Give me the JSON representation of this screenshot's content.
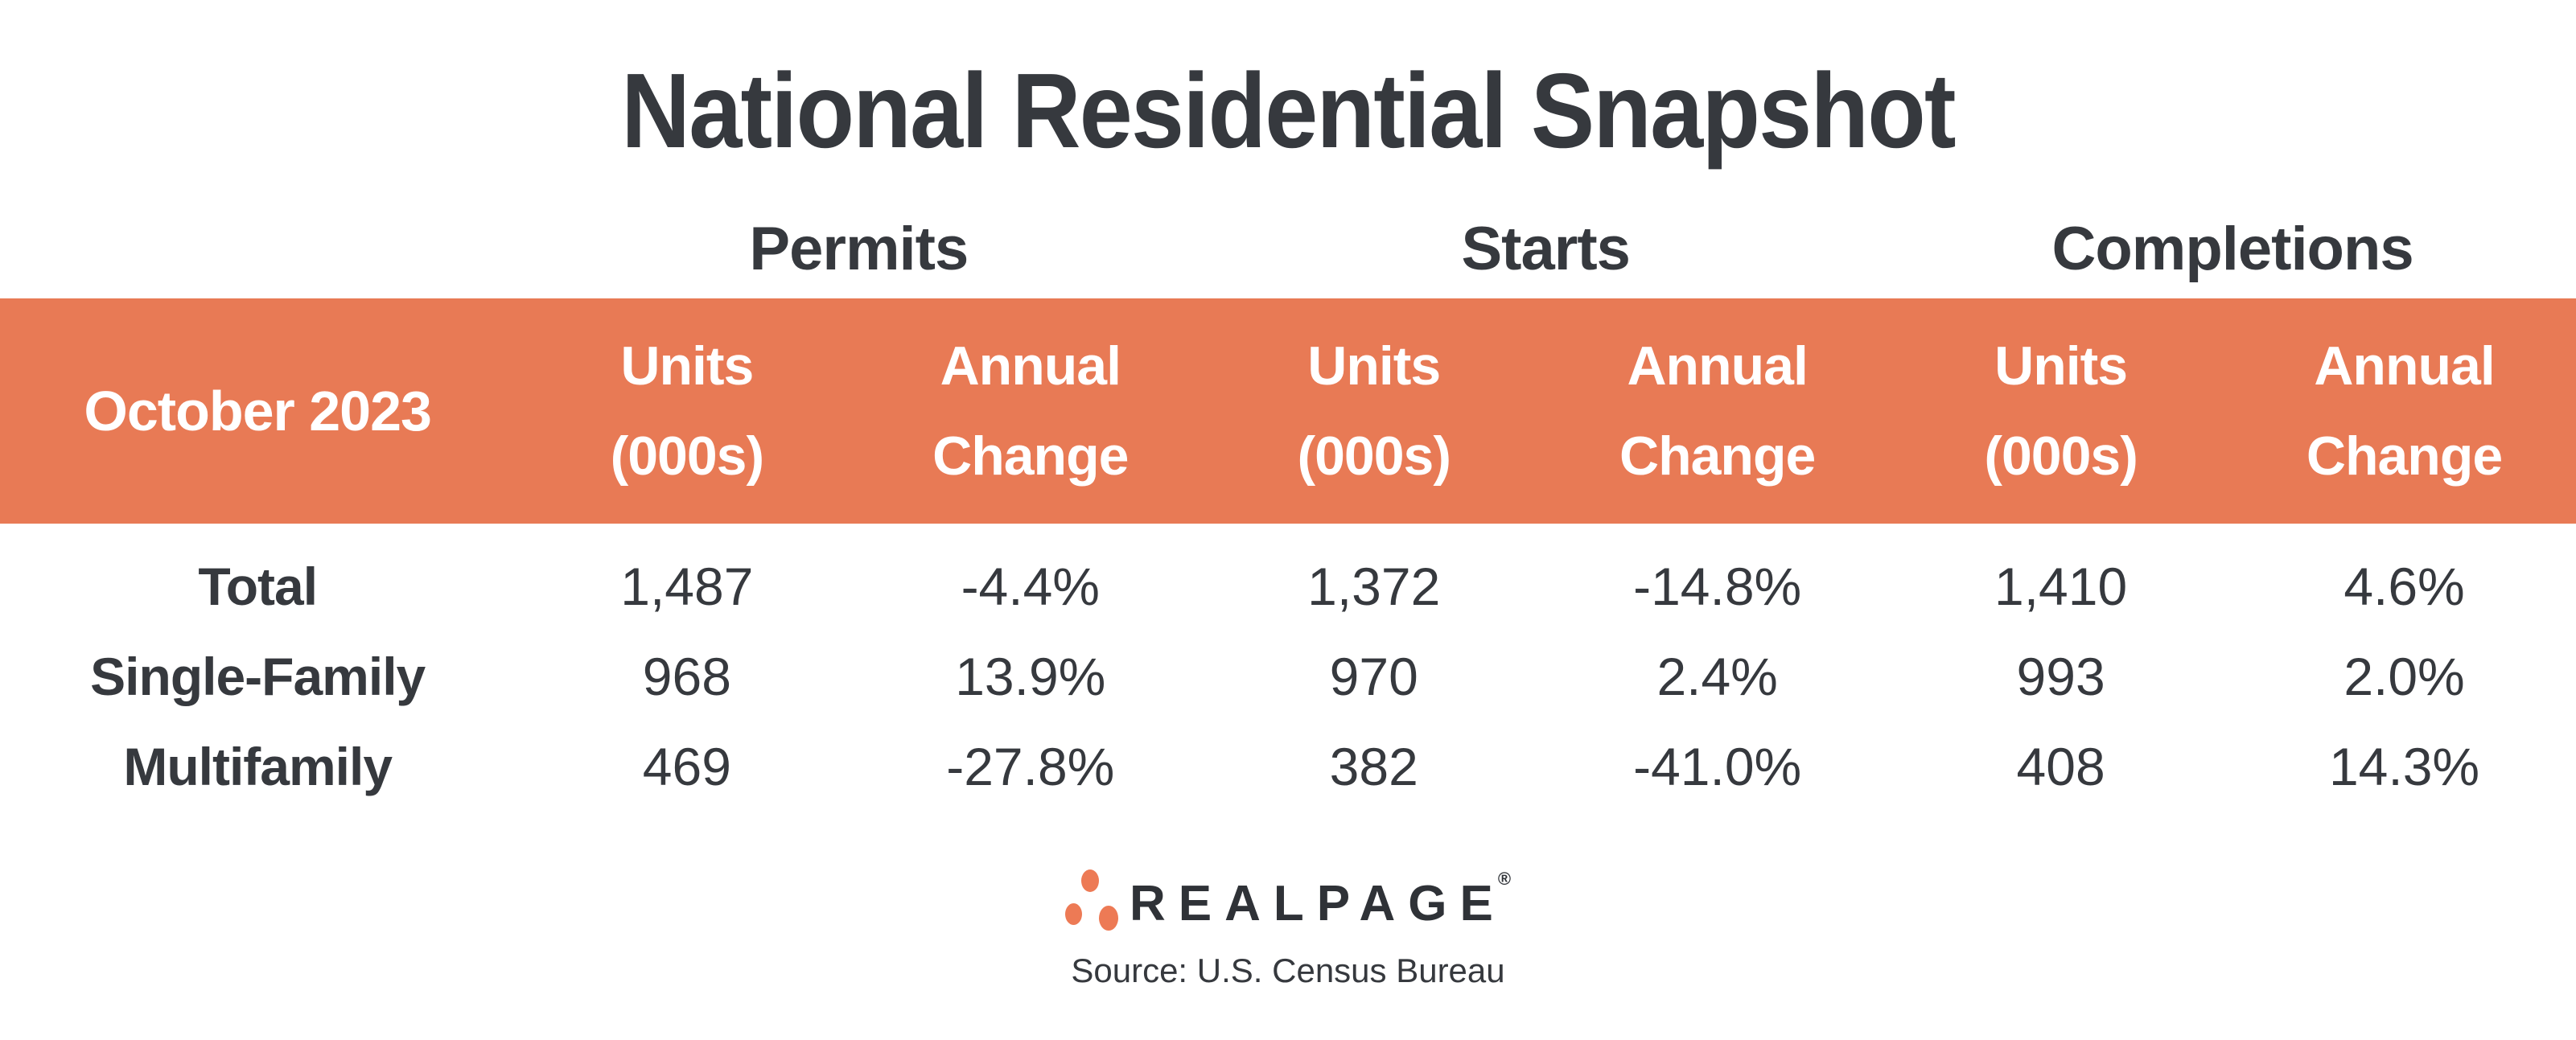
{
  "chart_data": {
    "type": "table",
    "title": "National Residential Snapshot",
    "period_label": "October 2023",
    "column_groups": [
      "Permits",
      "Starts",
      "Completions"
    ],
    "sub_header": {
      "units_l1": "Units",
      "units_l2": "(000s)",
      "annual_l1": "Annual",
      "annual_l2": "Change"
    },
    "columns": [
      "Units (000s)",
      "Annual Change",
      "Units (000s)",
      "Annual Change",
      "Units (000s)",
      "Annual Change"
    ],
    "rows": [
      {
        "label": "Total",
        "values": [
          "1,487",
          "-4.4%",
          "1,372",
          "-14.8%",
          "1,410",
          "4.6%"
        ]
      },
      {
        "label": "Single-Family",
        "values": [
          "968",
          "13.9%",
          "970",
          "2.4%",
          "993",
          "2.0%"
        ]
      },
      {
        "label": "Multifamily",
        "values": [
          "469",
          "-27.8%",
          "382",
          "-41.0%",
          "408",
          "14.3%"
        ]
      }
    ],
    "source": "Source: U.S. Census Bureau"
  },
  "branding": {
    "logo_text": "REALPAGE",
    "registered_mark": "®"
  },
  "colors": {
    "header_bg": "#E87A55",
    "header_text": "#FFFFFF",
    "logo_dot": "#ED7A55",
    "text_dark": "#36393E",
    "wordmark": "#2F3237"
  }
}
